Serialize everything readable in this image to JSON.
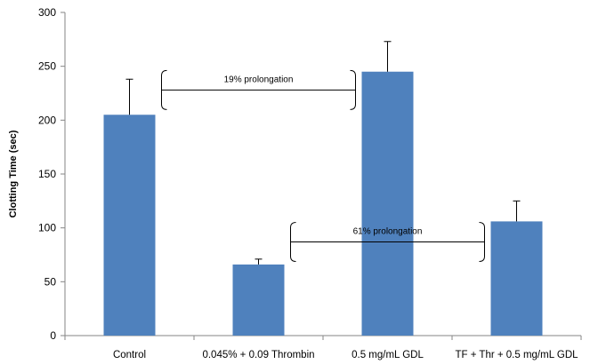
{
  "chart_data": {
    "type": "bar",
    "categories": [
      "Control",
      "0.045% + 0.09 Thrombin",
      "0.5 mg/mL  GDL",
      "TF + Thr + 0.5 mg/mL  GDL"
    ],
    "values": [
      205,
      66,
      245,
      106
    ],
    "error_upper": [
      238,
      71,
      273,
      125
    ],
    "ylabel": "Clotting Time (sec)",
    "xlabel": "",
    "ylim": [
      0,
      300
    ],
    "yticks": [
      0,
      50,
      100,
      150,
      200,
      250,
      300
    ],
    "bar_color": "#4f81bd",
    "grid": false,
    "legend": "none",
    "annotations": [
      {
        "text": "19% prolongation",
        "from_category": 0,
        "to_category": 2,
        "at_value": 228
      },
      {
        "text": "61% prolongation",
        "from_category": 1,
        "to_category": 3,
        "at_value": 87
      }
    ]
  }
}
